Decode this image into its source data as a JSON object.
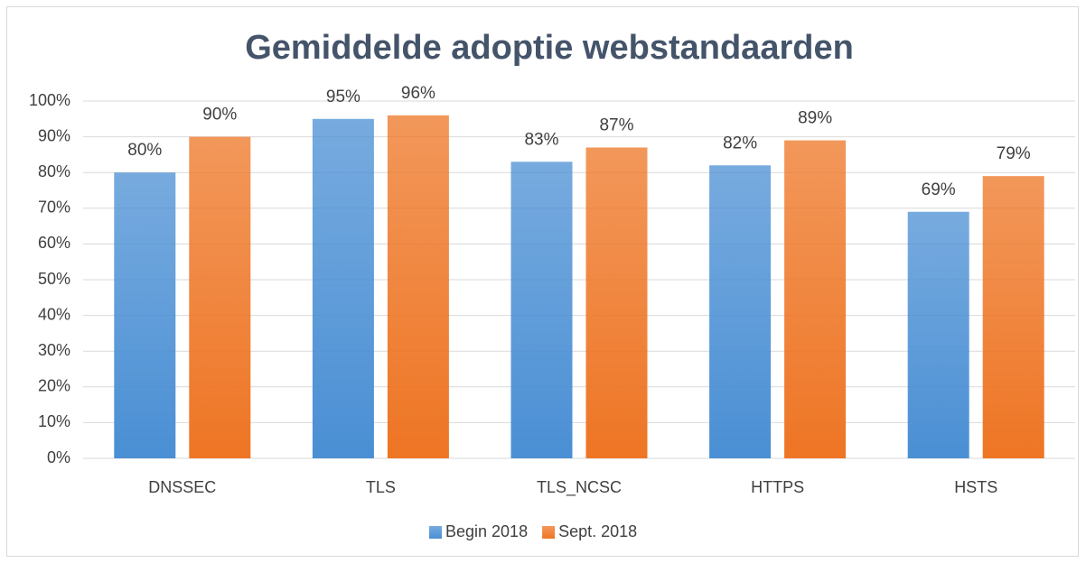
{
  "chart_data": {
    "type": "bar",
    "title": "Gemiddelde adoptie webstandaarden",
    "categories": [
      "DNSSEC",
      "TLS",
      "TLS_NCSC",
      "HTTPS",
      "HSTS"
    ],
    "series": [
      {
        "name": "Begin 2018",
        "color": "#4a8fd4",
        "values": [
          80,
          95,
          83,
          82,
          69
        ],
        "value_labels": [
          "80%",
          "95%",
          "83%",
          "82%",
          "69%"
        ]
      },
      {
        "name": "Sept. 2018",
        "color": "#ee7524",
        "values": [
          90,
          96,
          87,
          89,
          79
        ],
        "value_labels": [
          "90%",
          "96%",
          "87%",
          "89%",
          "79%"
        ]
      }
    ],
    "ylim": [
      0,
      100
    ],
    "yticks": [
      {
        "value": 0,
        "label": "0%"
      },
      {
        "value": 10,
        "label": "10%"
      },
      {
        "value": 20,
        "label": "20%"
      },
      {
        "value": 30,
        "label": "30%"
      },
      {
        "value": 40,
        "label": "40%"
      },
      {
        "value": 50,
        "label": "50%"
      },
      {
        "value": 60,
        "label": "60%"
      },
      {
        "value": 70,
        "label": "70%"
      },
      {
        "value": 80,
        "label": "80%"
      },
      {
        "value": 90,
        "label": "90%"
      },
      {
        "value": 100,
        "label": "100%"
      }
    ],
    "grid": true,
    "legend": "bottom"
  }
}
